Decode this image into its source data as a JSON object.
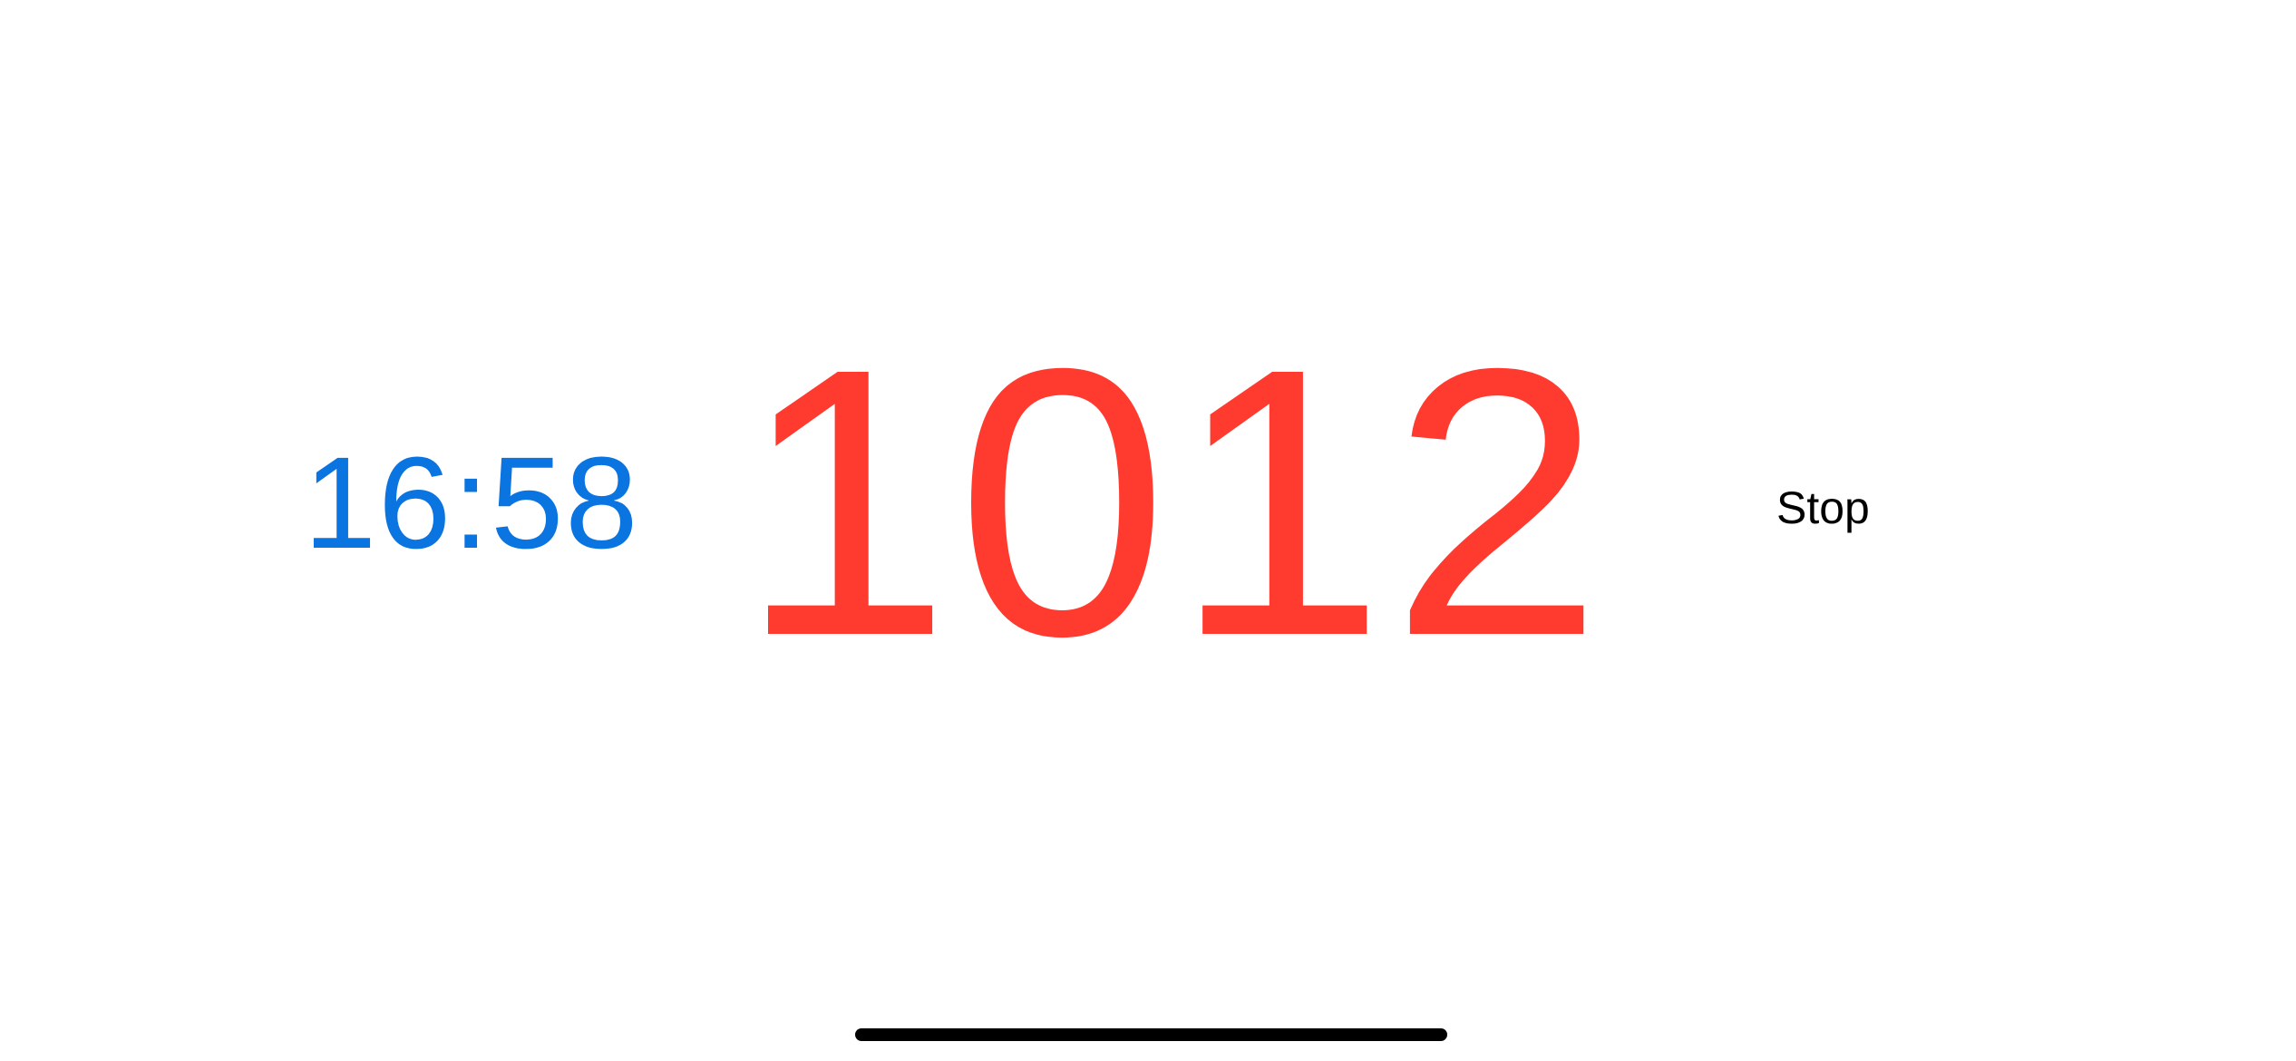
{
  "clock": {
    "time": "16:58",
    "color": "#0A74E0"
  },
  "counter": {
    "value": "1012",
    "color": "#FF3B30"
  },
  "controls": {
    "stop_label": "Stop"
  },
  "system": {
    "home_indicator": "home-indicator"
  }
}
